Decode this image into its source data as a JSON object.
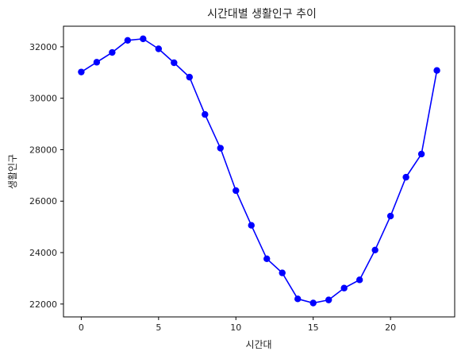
{
  "chart_data": {
    "type": "line",
    "title": "시간대별 생활인구 추이",
    "xlabel": "시간대",
    "ylabel": "생활인구",
    "x": [
      0,
      1,
      2,
      3,
      4,
      5,
      6,
      7,
      8,
      9,
      10,
      11,
      12,
      13,
      14,
      15,
      16,
      17,
      18,
      19,
      20,
      21,
      22,
      23
    ],
    "series": [
      {
        "name": "",
        "color": "#0000ff",
        "marker": "circle",
        "values": [
          31020,
          31400,
          31780,
          32250,
          32310,
          31920,
          31380,
          30820,
          29370,
          28060,
          26410,
          25060,
          23760,
          23210,
          22200,
          22040,
          22160,
          22620,
          22940,
          24100,
          25420,
          26930,
          27830,
          31080
        ]
      }
    ],
    "xlim": [
      -1.15,
      24.15
    ],
    "ylim": [
      21500,
      32800
    ],
    "xticks": [
      0,
      5,
      10,
      15,
      20
    ],
    "xtick_labels": [
      "0",
      "5",
      "10",
      "15",
      "20"
    ],
    "yticks": [
      22000,
      24000,
      26000,
      28000,
      30000,
      32000
    ],
    "ytick_labels": [
      "22000",
      "24000",
      "26000",
      "28000",
      "30000",
      "32000"
    ],
    "grid": false,
    "legend": false
  }
}
